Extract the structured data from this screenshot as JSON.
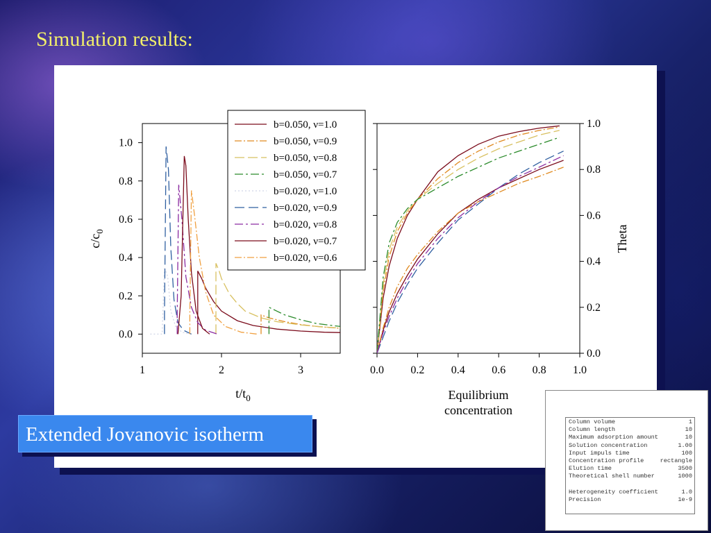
{
  "slide": {
    "title": "Simulation results:",
    "label": "Extended Jovanovic isotherm"
  },
  "parameters": [
    {
      "name": "Column volume",
      "value": "1"
    },
    {
      "name": "Column length",
      "value": "10"
    },
    {
      "name": "Maximum adsorption amount",
      "value": "10"
    },
    {
      "name": "Solution concentration",
      "value": "1.00"
    },
    {
      "name": "Input impuls time",
      "value": "100"
    },
    {
      "name": "Concentration profile",
      "value": "rectangle"
    },
    {
      "name": "Elution time",
      "value": "3500"
    },
    {
      "name": "Theoretical shell number",
      "value": "1000"
    },
    {
      "name": "",
      "value": ""
    },
    {
      "name": "Heterogeneity coefficient",
      "value": "1.0"
    },
    {
      "name": "Precision",
      "value": "1e-9"
    }
  ],
  "chart_data": [
    {
      "type": "line",
      "ylabel": "c/c0",
      "xlabel": "t/t0",
      "xlim": [
        1.0,
        3.5
      ],
      "ylim": [
        -0.1,
        1.1
      ],
      "xticks": [
        "1",
        "2",
        "3"
      ],
      "xtick_values": [
        1,
        2,
        3
      ],
      "yticks": [
        "0.0",
        "0.2",
        "0.4",
        "0.6",
        "0.8",
        "1.0"
      ],
      "ytick_values": [
        0.0,
        0.2,
        0.4,
        0.6,
        0.8,
        1.0
      ],
      "legend_position": "top-right",
      "series": [
        {
          "name": "b=0.050, ν=1.0",
          "color": "#7a0a1a",
          "dash": "",
          "x": [
            1.7,
            1.7,
            1.75,
            1.8,
            1.9,
            2.0,
            2.2,
            2.4,
            2.7,
            3.0,
            3.3,
            3.5
          ],
          "y": [
            0.0,
            0.33,
            0.29,
            0.24,
            0.17,
            0.12,
            0.07,
            0.045,
            0.026,
            0.016,
            0.01,
            0.008
          ]
        },
        {
          "name": "b=0.050, ν=0.9",
          "color": "#e08a20",
          "dash": "10,3,2,3",
          "x": [
            2.5,
            2.5,
            2.6,
            2.8,
            3.0,
            3.2,
            3.5
          ],
          "y": [
            0.0,
            0.1,
            0.085,
            0.065,
            0.05,
            0.04,
            0.03
          ]
        },
        {
          "name": "b=0.050, ν=0.8",
          "color": "#d8c060",
          "dash": "14,5",
          "x": [
            1.93,
            1.93,
            1.97,
            2.0,
            2.1,
            2.2,
            2.3,
            2.5,
            2.7,
            3.0,
            3.3,
            3.5
          ],
          "y": [
            0.0,
            0.37,
            0.33,
            0.29,
            0.21,
            0.16,
            0.12,
            0.085,
            0.065,
            0.048,
            0.037,
            0.032
          ]
        },
        {
          "name": "b=0.050, ν=0.7",
          "color": "#2a8a2a",
          "dash": "12,4,3,4",
          "x": [
            2.6,
            2.6,
            2.7,
            2.8,
            3.0,
            3.2,
            3.5
          ],
          "y": [
            0.0,
            0.14,
            0.12,
            0.1,
            0.075,
            0.055,
            0.04
          ]
        },
        {
          "name": "b=0.020, ν=1.0",
          "color": "#cfd4e6",
          "dash": "2,3",
          "x": [
            1.1,
            1.25,
            1.28,
            1.32,
            1.36,
            1.42,
            1.5,
            1.6
          ],
          "y": [
            0.0,
            0.0,
            0.35,
            0.3,
            0.12,
            0.04,
            0.01,
            0.0
          ]
        },
        {
          "name": "b=0.020, ν=0.9",
          "color": "#2f5fa0",
          "dash": "14,6",
          "x": [
            1.28,
            1.28,
            1.3,
            1.33,
            1.36,
            1.4,
            1.45,
            1.52,
            1.62
          ],
          "y": [
            0.0,
            0.1,
            0.98,
            0.86,
            0.45,
            0.18,
            0.06,
            0.02,
            0.0
          ]
        },
        {
          "name": "b=0.020, ν=0.8",
          "color": "#8a2aa0",
          "dash": "12,4,3,4",
          "x": [
            1.44,
            1.44,
            1.46,
            1.5,
            1.55,
            1.62,
            1.7,
            1.8,
            1.95
          ],
          "y": [
            0.0,
            0.1,
            0.78,
            0.6,
            0.3,
            0.14,
            0.06,
            0.02,
            0.0
          ]
        },
        {
          "name": "b=0.020, ν=0.7",
          "color": "#7a0a1a",
          "dash": "",
          "x": [
            1.45,
            1.49,
            1.53,
            1.55,
            1.58,
            1.62,
            1.68,
            1.76,
            1.85
          ],
          "y": [
            0.0,
            0.2,
            0.93,
            0.88,
            0.6,
            0.32,
            0.12,
            0.03,
            0.0
          ]
        },
        {
          "name": "b=0.020, ν=0.6",
          "color": "#f0a040",
          "dash": "10,3,2,3",
          "x": [
            1.6,
            1.6,
            1.62,
            1.66,
            1.72,
            1.8,
            1.9,
            2.05,
            2.25,
            2.45
          ],
          "y": [
            0.0,
            0.1,
            0.75,
            0.62,
            0.4,
            0.22,
            0.1,
            0.04,
            0.01,
            0.0
          ]
        }
      ]
    },
    {
      "type": "line",
      "xlabel": "Equilibrium concentration",
      "ylabel": "Theta",
      "xlim": [
        0.0,
        1.0
      ],
      "ylim": [
        0.0,
        1.0
      ],
      "xticks": [
        "0.0",
        "0.2",
        "0.4",
        "0.6",
        "0.8",
        "1.0"
      ],
      "xtick_values": [
        0.0,
        0.2,
        0.4,
        0.6,
        0.8,
        1.0
      ],
      "yticks": [
        "0.0",
        "0.2",
        "0.4",
        "0.6",
        "0.8",
        "1.0"
      ],
      "ytick_values": [
        0.0,
        0.2,
        0.4,
        0.6,
        0.8,
        1.0
      ],
      "series": [
        {
          "color": "#7a0a1a",
          "dash": "",
          "x": [
            0.0,
            0.03,
            0.06,
            0.1,
            0.15,
            0.2,
            0.3,
            0.4,
            0.5,
            0.6,
            0.7,
            0.8,
            0.9
          ],
          "y": [
            0.0,
            0.24,
            0.38,
            0.5,
            0.6,
            0.67,
            0.79,
            0.86,
            0.91,
            0.945,
            0.965,
            0.98,
            0.99
          ]
        },
        {
          "color": "#e08a20",
          "dash": "10,3,2,3",
          "x": [
            0.0,
            0.03,
            0.06,
            0.1,
            0.15,
            0.2,
            0.3,
            0.4,
            0.5,
            0.6,
            0.7,
            0.8,
            0.9
          ],
          "y": [
            0.0,
            0.27,
            0.42,
            0.53,
            0.61,
            0.67,
            0.76,
            0.83,
            0.88,
            0.92,
            0.95,
            0.97,
            0.985
          ]
        },
        {
          "color": "#d8c060",
          "dash": "14,5",
          "x": [
            0.0,
            0.03,
            0.06,
            0.1,
            0.15,
            0.2,
            0.3,
            0.4,
            0.5,
            0.6,
            0.7,
            0.8,
            0.9
          ],
          "y": [
            0.0,
            0.3,
            0.45,
            0.55,
            0.62,
            0.67,
            0.74,
            0.8,
            0.85,
            0.89,
            0.92,
            0.95,
            0.97
          ]
        },
        {
          "color": "#2a8a2a",
          "dash": "12,4,3,4",
          "x": [
            0.0,
            0.03,
            0.06,
            0.1,
            0.15,
            0.2,
            0.3,
            0.4,
            0.5,
            0.6,
            0.7,
            0.8,
            0.9
          ],
          "y": [
            0.0,
            0.33,
            0.48,
            0.57,
            0.63,
            0.67,
            0.72,
            0.77,
            0.81,
            0.85,
            0.88,
            0.91,
            0.94
          ]
        },
        {
          "color": "#7a0a1a",
          "dash": "",
          "x": [
            0.0,
            0.03,
            0.06,
            0.1,
            0.15,
            0.2,
            0.3,
            0.4,
            0.5,
            0.6,
            0.7,
            0.8,
            0.92
          ],
          "y": [
            0.0,
            0.1,
            0.18,
            0.26,
            0.34,
            0.41,
            0.52,
            0.61,
            0.67,
            0.72,
            0.76,
            0.8,
            0.84
          ]
        },
        {
          "color": "#e08a20",
          "dash": "10,3,2,3",
          "x": [
            0.0,
            0.03,
            0.06,
            0.1,
            0.15,
            0.2,
            0.3,
            0.4,
            0.5,
            0.6,
            0.7,
            0.8,
            0.92
          ],
          "y": [
            0.0,
            0.11,
            0.2,
            0.29,
            0.37,
            0.43,
            0.53,
            0.61,
            0.66,
            0.7,
            0.74,
            0.77,
            0.81
          ]
        },
        {
          "color": "#2f5fa0",
          "dash": "14,6",
          "x": [
            0.0,
            0.03,
            0.06,
            0.1,
            0.15,
            0.2,
            0.3,
            0.4,
            0.5,
            0.6,
            0.7,
            0.8,
            0.92
          ],
          "y": [
            0.0,
            0.07,
            0.14,
            0.22,
            0.3,
            0.37,
            0.48,
            0.58,
            0.65,
            0.72,
            0.78,
            0.83,
            0.88
          ]
        },
        {
          "color": "#8a2aa0",
          "dash": "12,4,3,4",
          "x": [
            0.0,
            0.03,
            0.06,
            0.1,
            0.15,
            0.2,
            0.3,
            0.4,
            0.5,
            0.6,
            0.7,
            0.8,
            0.92
          ],
          "y": [
            0.0,
            0.09,
            0.16,
            0.24,
            0.32,
            0.39,
            0.5,
            0.59,
            0.66,
            0.72,
            0.77,
            0.81,
            0.86
          ]
        }
      ]
    }
  ]
}
